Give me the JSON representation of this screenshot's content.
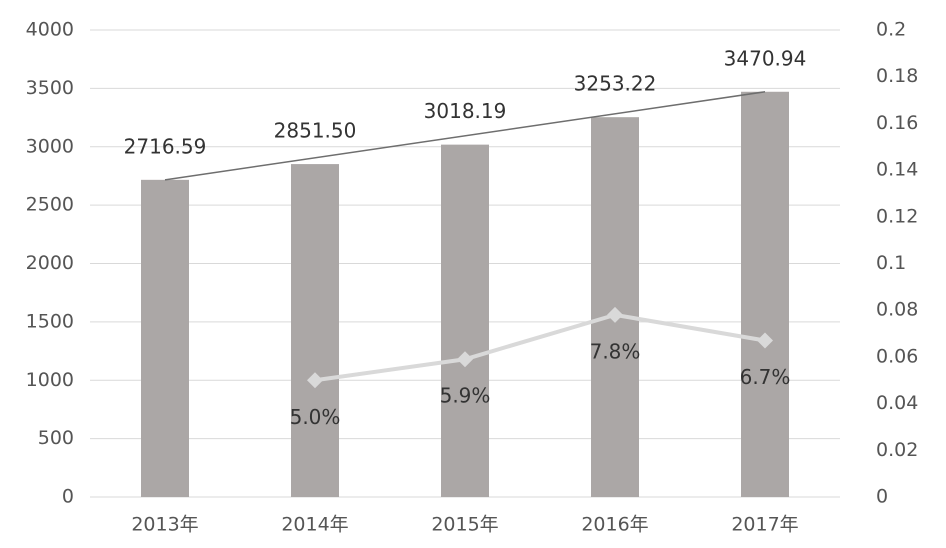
{
  "chart_data": {
    "type": "bar_line",
    "categories": [
      "2013年",
      "2014年",
      "2015年",
      "2016年",
      "2017年"
    ],
    "series": [
      {
        "type": "bar",
        "color": "#aba7a6",
        "values": [
          2716.59,
          2851.5,
          3018.19,
          3253.22,
          3470.94
        ],
        "value_labels": [
          "2716.59",
          "2851.50",
          "3018.19",
          "3253.22",
          "3470.94"
        ]
      },
      {
        "type": "line",
        "axis": "y2",
        "color": "#d9d9d9",
        "values": [
          null,
          0.05,
          0.059,
          0.078,
          0.067
        ],
        "value_labels": [
          null,
          "5.0%",
          "5.9%",
          "7.8%",
          "6.7%"
        ]
      }
    ],
    "trendline_color": "#6e6e6e",
    "ylim": [
      0,
      4000
    ],
    "yticks": [
      0,
      500,
      1000,
      1500,
      2000,
      2500,
      3000,
      3500,
      4000
    ],
    "y2lim": [
      0,
      0.2
    ],
    "y2ticks": [
      0,
      0.02,
      0.04,
      0.06,
      0.08,
      0.1,
      0.12,
      0.14,
      0.16,
      0.18,
      0.2
    ],
    "grid": true
  }
}
